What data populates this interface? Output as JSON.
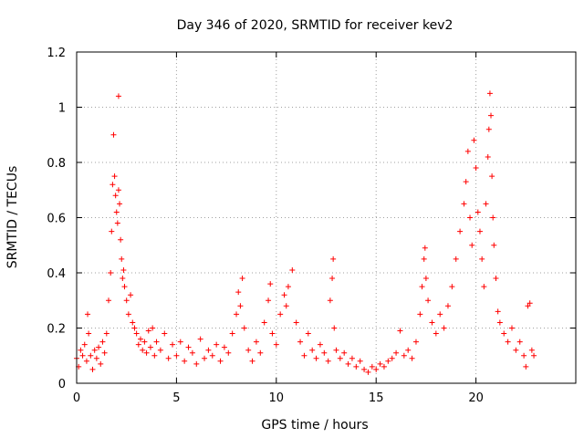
{
  "chart_data": {
    "type": "scatter",
    "title": "Day 346 of 2020, SRMTID for receiver kev2",
    "xlabel": "GPS time / hours",
    "ylabel": "SRMTID / TECUs",
    "xlim": [
      0,
      25
    ],
    "ylim": [
      0,
      1.2
    ],
    "x_ticks": [
      0,
      5,
      10,
      15,
      20
    ],
    "x_tick_labels": [
      "0",
      "5",
      "10",
      "15",
      "20"
    ],
    "y_ticks": [
      0,
      0.2,
      0.4,
      0.6,
      0.8,
      1.0,
      1.2
    ],
    "y_tick_labels": [
      "0",
      "0.2",
      "0.4",
      "0.6",
      "0.8",
      "1",
      "1.2"
    ],
    "grid": true,
    "marker": "+",
    "color": "#ff0000",
    "series": [
      {
        "name": "SRMTID",
        "points": [
          [
            0.0,
            0.09
          ],
          [
            0.1,
            0.06
          ],
          [
            0.2,
            0.12
          ],
          [
            0.3,
            0.1
          ],
          [
            0.4,
            0.14
          ],
          [
            0.5,
            0.08
          ],
          [
            0.55,
            0.25
          ],
          [
            0.6,
            0.18
          ],
          [
            0.7,
            0.1
          ],
          [
            0.8,
            0.05
          ],
          [
            0.9,
            0.12
          ],
          [
            1.0,
            0.09
          ],
          [
            1.1,
            0.13
          ],
          [
            1.2,
            0.07
          ],
          [
            1.3,
            0.15
          ],
          [
            1.4,
            0.11
          ],
          [
            1.5,
            0.18
          ],
          [
            1.6,
            0.3
          ],
          [
            1.7,
            0.4
          ],
          [
            1.75,
            0.55
          ],
          [
            1.8,
            0.72
          ],
          [
            1.85,
            0.9
          ],
          [
            1.9,
            0.75
          ],
          [
            1.95,
            0.68
          ],
          [
            2.0,
            0.62
          ],
          [
            2.05,
            0.58
          ],
          [
            2.1,
            0.7
          ],
          [
            2.1,
            1.04
          ],
          [
            2.15,
            0.65
          ],
          [
            2.2,
            0.52
          ],
          [
            2.25,
            0.45
          ],
          [
            2.3,
            0.38
          ],
          [
            2.35,
            0.41
          ],
          [
            2.4,
            0.35
          ],
          [
            2.5,
            0.3
          ],
          [
            2.6,
            0.25
          ],
          [
            2.7,
            0.32
          ],
          [
            2.8,
            0.22
          ],
          [
            2.9,
            0.2
          ],
          [
            3.0,
            0.18
          ],
          [
            3.1,
            0.14
          ],
          [
            3.2,
            0.16
          ],
          [
            3.3,
            0.12
          ],
          [
            3.4,
            0.15
          ],
          [
            3.5,
            0.11
          ],
          [
            3.6,
            0.19
          ],
          [
            3.7,
            0.13
          ],
          [
            3.8,
            0.2
          ],
          [
            3.9,
            0.1
          ],
          [
            4.0,
            0.15
          ],
          [
            4.2,
            0.12
          ],
          [
            4.4,
            0.18
          ],
          [
            4.6,
            0.09
          ],
          [
            4.8,
            0.14
          ],
          [
            5.0,
            0.1
          ],
          [
            5.2,
            0.15
          ],
          [
            5.4,
            0.08
          ],
          [
            5.6,
            0.13
          ],
          [
            5.8,
            0.11
          ],
          [
            6.0,
            0.07
          ],
          [
            6.2,
            0.16
          ],
          [
            6.4,
            0.09
          ],
          [
            6.6,
            0.12
          ],
          [
            6.8,
            0.1
          ],
          [
            7.0,
            0.14
          ],
          [
            7.2,
            0.08
          ],
          [
            7.4,
            0.13
          ],
          [
            7.6,
            0.11
          ],
          [
            7.8,
            0.18
          ],
          [
            8.0,
            0.25
          ],
          [
            8.1,
            0.33
          ],
          [
            8.2,
            0.28
          ],
          [
            8.3,
            0.38
          ],
          [
            8.4,
            0.2
          ],
          [
            8.6,
            0.12
          ],
          [
            8.8,
            0.08
          ],
          [
            9.0,
            0.15
          ],
          [
            9.2,
            0.11
          ],
          [
            9.4,
            0.22
          ],
          [
            9.6,
            0.3
          ],
          [
            9.7,
            0.36
          ],
          [
            9.8,
            0.18
          ],
          [
            10.0,
            0.14
          ],
          [
            10.2,
            0.25
          ],
          [
            10.4,
            0.32
          ],
          [
            10.5,
            0.28
          ],
          [
            10.6,
            0.35
          ],
          [
            10.8,
            0.41
          ],
          [
            11.0,
            0.22
          ],
          [
            11.2,
            0.15
          ],
          [
            11.4,
            0.1
          ],
          [
            11.6,
            0.18
          ],
          [
            11.8,
            0.12
          ],
          [
            12.0,
            0.09
          ],
          [
            12.2,
            0.14
          ],
          [
            12.4,
            0.11
          ],
          [
            12.6,
            0.08
          ],
          [
            12.7,
            0.3
          ],
          [
            12.8,
            0.38
          ],
          [
            12.85,
            0.45
          ],
          [
            12.9,
            0.2
          ],
          [
            13.0,
            0.12
          ],
          [
            13.2,
            0.09
          ],
          [
            13.4,
            0.11
          ],
          [
            13.6,
            0.07
          ],
          [
            13.8,
            0.09
          ],
          [
            14.0,
            0.06
          ],
          [
            14.2,
            0.08
          ],
          [
            14.4,
            0.05
          ],
          [
            14.6,
            0.04
          ],
          [
            14.8,
            0.06
          ],
          [
            15.0,
            0.05
          ],
          [
            15.2,
            0.07
          ],
          [
            15.4,
            0.06
          ],
          [
            15.6,
            0.08
          ],
          [
            15.8,
            0.09
          ],
          [
            16.0,
            0.11
          ],
          [
            16.2,
            0.19
          ],
          [
            16.4,
            0.1
          ],
          [
            16.6,
            0.12
          ],
          [
            16.8,
            0.09
          ],
          [
            17.0,
            0.15
          ],
          [
            17.2,
            0.25
          ],
          [
            17.3,
            0.35
          ],
          [
            17.4,
            0.45
          ],
          [
            17.45,
            0.49
          ],
          [
            17.5,
            0.38
          ],
          [
            17.6,
            0.3
          ],
          [
            17.8,
            0.22
          ],
          [
            18.0,
            0.18
          ],
          [
            18.2,
            0.25
          ],
          [
            18.4,
            0.2
          ],
          [
            18.6,
            0.28
          ],
          [
            18.8,
            0.35
          ],
          [
            19.0,
            0.45
          ],
          [
            19.2,
            0.55
          ],
          [
            19.4,
            0.65
          ],
          [
            19.5,
            0.73
          ],
          [
            19.6,
            0.84
          ],
          [
            19.7,
            0.6
          ],
          [
            19.8,
            0.5
          ],
          [
            19.9,
            0.88
          ],
          [
            20.0,
            0.78
          ],
          [
            20.1,
            0.62
          ],
          [
            20.2,
            0.55
          ],
          [
            20.3,
            0.45
          ],
          [
            20.4,
            0.35
          ],
          [
            20.5,
            0.65
          ],
          [
            20.6,
            0.82
          ],
          [
            20.65,
            0.92
          ],
          [
            20.7,
            1.05
          ],
          [
            20.75,
            0.97
          ],
          [
            20.8,
            0.75
          ],
          [
            20.85,
            0.6
          ],
          [
            20.9,
            0.5
          ],
          [
            21.0,
            0.38
          ],
          [
            21.1,
            0.26
          ],
          [
            21.2,
            0.22
          ],
          [
            21.4,
            0.18
          ],
          [
            21.6,
            0.15
          ],
          [
            21.8,
            0.2
          ],
          [
            22.0,
            0.12
          ],
          [
            22.2,
            0.15
          ],
          [
            22.4,
            0.1
          ],
          [
            22.5,
            0.06
          ],
          [
            22.6,
            0.28
          ],
          [
            22.7,
            0.29
          ],
          [
            22.8,
            0.12
          ],
          [
            22.9,
            0.1
          ]
        ]
      }
    ]
  }
}
